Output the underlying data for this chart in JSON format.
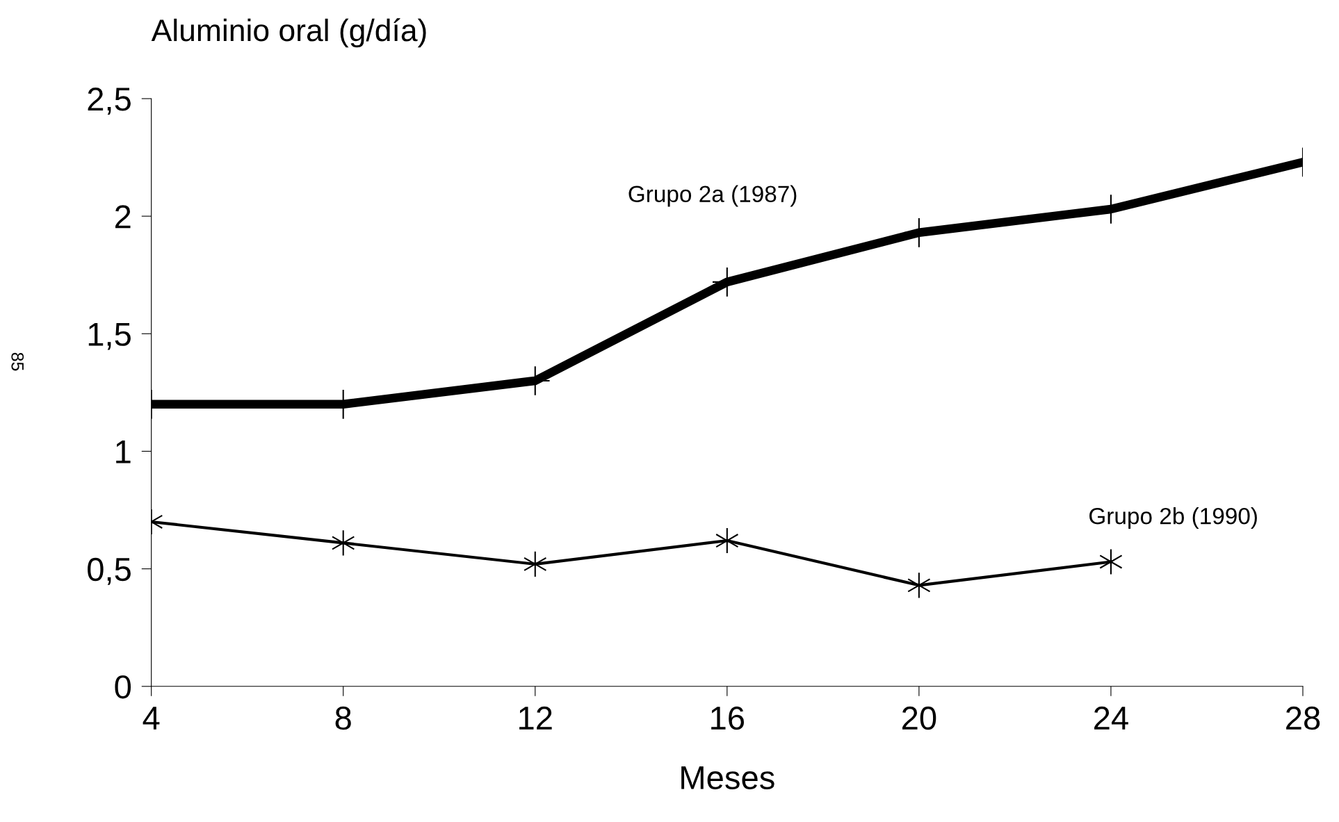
{
  "chart_data": {
    "type": "line",
    "ylabel": "Aluminio oral (g/día)",
    "xlabel": "Meses",
    "x": [
      4,
      8,
      12,
      16,
      20,
      24,
      28
    ],
    "series": [
      {
        "name": "Grupo 2a (1987)",
        "color": "#000000",
        "marker": "cross",
        "values": [
          1.2,
          1.2,
          1.3,
          1.72,
          1.93,
          2.03,
          2.23
        ]
      },
      {
        "name": "Grupo 2b (1990)",
        "color": "#000000",
        "marker": "cross",
        "values": [
          0.7,
          0.61,
          0.52,
          0.62,
          0.43,
          0.53,
          null
        ]
      }
    ],
    "xlim": [
      4,
      28
    ],
    "xticks": [
      4,
      8,
      12,
      16,
      20,
      24,
      28
    ],
    "ylim": [
      0,
      2.5
    ],
    "yticks": [
      0,
      {
        "value": 0.5,
        "label": "0,5"
      },
      1,
      {
        "value": 1.5,
        "label": "1,5"
      },
      2,
      {
        "value": 2.5,
        "label": "2,5"
      }
    ],
    "grid": false,
    "legend": false,
    "line_style": "solid",
    "annotations": [
      "85"
    ]
  }
}
